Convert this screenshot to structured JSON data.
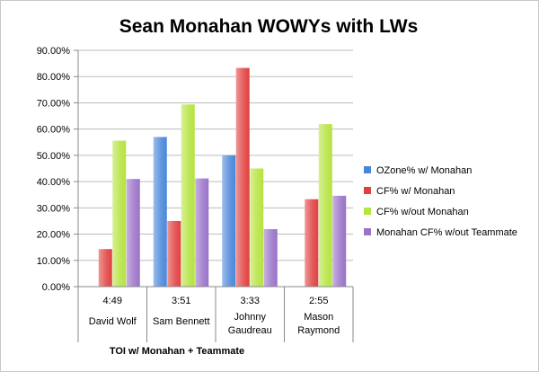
{
  "chart_data": {
    "type": "bar",
    "title": "Sean Monahan WOWYs with LWs",
    "xlabel": "TOI w/ Monahan + Teammate",
    "ylabel": "",
    "ylim": [
      0,
      90
    ],
    "yticks": [
      "0.00%",
      "10.00%",
      "20.00%",
      "30.00%",
      "40.00%",
      "50.00%",
      "60.00%",
      "70.00%",
      "80.00%",
      "90.00%"
    ],
    "categories": [
      {
        "toi": "4:49",
        "player": [
          "David Wolf"
        ]
      },
      {
        "toi": "3:51",
        "player": [
          "Sam Bennett"
        ]
      },
      {
        "toi": "3:33",
        "player": [
          "Johnny",
          "Gaudreau"
        ]
      },
      {
        "toi": "2:55",
        "player": [
          "Mason",
          "Raymond"
        ]
      }
    ],
    "series": [
      {
        "name": "OZone% w/ Monahan",
        "color": "#4a86d8",
        "values": [
          null,
          57.0,
          50.0,
          null
        ]
      },
      {
        "name": "CF% w/ Monahan",
        "color": "#e04040",
        "values": [
          14.3,
          25.0,
          83.3,
          33.3
        ]
      },
      {
        "name": "CF% w/out Monahan",
        "color": "#b5e33f",
        "values": [
          55.6,
          69.4,
          45.0,
          61.9
        ]
      },
      {
        "name": "Monahan CF% w/out Teammate",
        "color": "#9a72c8",
        "values": [
          41.0,
          41.2,
          21.9,
          34.6
        ]
      }
    ],
    "legend_position": "right",
    "grid": true
  }
}
